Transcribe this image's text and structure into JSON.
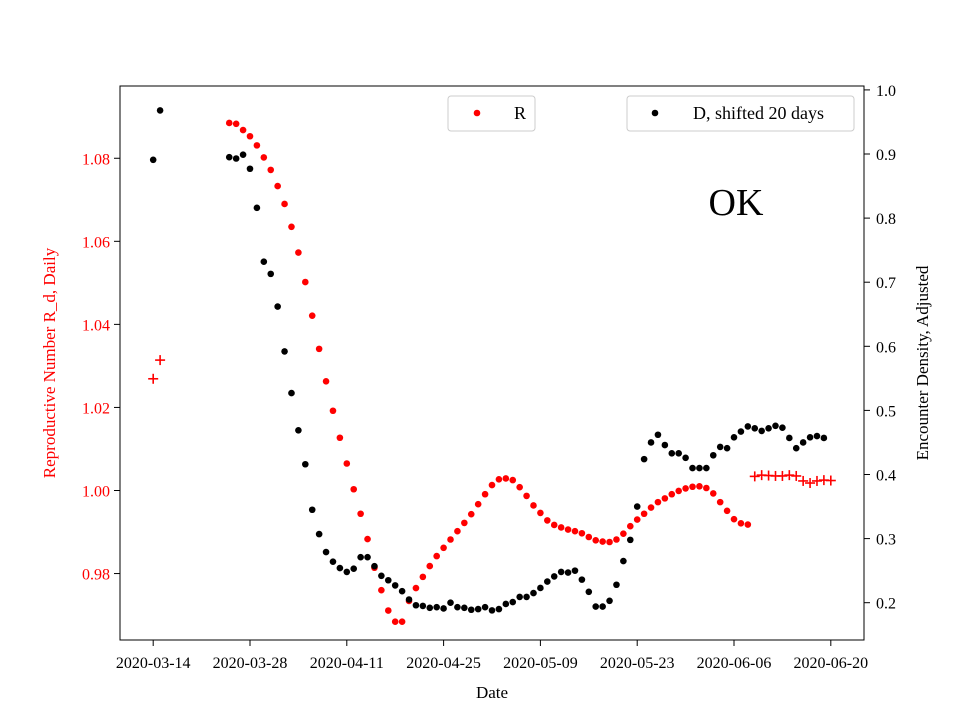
{
  "chart_data": {
    "type": "scatter",
    "annotation": "OK",
    "xlabel": "Date",
    "ylabel_left": "Reproductive Number R_d, Daily",
    "ylabel_right": "Encounter Density, Adjusted",
    "x_ticks": [
      {
        "day": 0,
        "label": "2020-03-14"
      },
      {
        "day": 14,
        "label": "2020-03-28"
      },
      {
        "day": 28,
        "label": "2020-04-11"
      },
      {
        "day": 42,
        "label": "2020-04-25"
      },
      {
        "day": 56,
        "label": "2020-05-09"
      },
      {
        "day": 70,
        "label": "2020-05-23"
      },
      {
        "day": 84,
        "label": "2020-06-06"
      },
      {
        "day": 98,
        "label": "2020-06-20"
      }
    ],
    "x_day_zero": "2020-03-14",
    "x_range": [
      -4.8,
      102.8
    ],
    "left_ylim": [
      0.964,
      1.0974
    ],
    "left_ticks": [
      {
        "v": 0.98,
        "label": "0.98"
      },
      {
        "v": 1.0,
        "label": "1.00"
      },
      {
        "v": 1.02,
        "label": "1.02"
      },
      {
        "v": 1.04,
        "label": "1.04"
      },
      {
        "v": 1.06,
        "label": "1.06"
      },
      {
        "v": 1.08,
        "label": "1.08"
      }
    ],
    "right_ylim": [
      0.1418,
      1.0061
    ],
    "right_ticks": [
      {
        "v": 0.2,
        "label": "0.2"
      },
      {
        "v": 0.3,
        "label": "0.3"
      },
      {
        "v": 0.4,
        "label": "0.4"
      },
      {
        "v": 0.5,
        "label": "0.5"
      },
      {
        "v": 0.6,
        "label": "0.6"
      },
      {
        "v": 0.7,
        "label": "0.7"
      },
      {
        "v": 0.8,
        "label": "0.8"
      },
      {
        "v": 0.9,
        "label": "0.9"
      },
      {
        "v": 1.0,
        "label": "1.0"
      }
    ],
    "legend": {
      "r_label": "R",
      "d_label": "D, shifted 20 days"
    },
    "series": [
      {
        "name": "R",
        "axis": "left",
        "color": "#ff0000",
        "marker": "dot",
        "points": [
          [
            11,
            1.0885
          ],
          [
            12,
            1.0883
          ],
          [
            13,
            1.0868
          ],
          [
            14,
            1.0853
          ],
          [
            15,
            1.0831
          ],
          [
            16,
            1.0802
          ],
          [
            17,
            1.0772
          ],
          [
            18,
            1.0733
          ],
          [
            19,
            1.069
          ],
          [
            20,
            1.0635
          ],
          [
            21,
            1.0573
          ],
          [
            22,
            1.0502
          ],
          [
            23,
            1.0421
          ],
          [
            24,
            1.0341
          ],
          [
            25,
            1.0263
          ],
          [
            26,
            1.0192
          ],
          [
            27,
            1.0127
          ],
          [
            28,
            1.0065
          ],
          [
            29,
            1.0003
          ],
          [
            30,
            0.9944
          ],
          [
            31,
            0.9883
          ],
          [
            32,
            0.9814
          ],
          [
            33,
            0.976
          ],
          [
            34,
            0.9711
          ],
          [
            35,
            0.9684
          ],
          [
            36,
            0.9684
          ],
          [
            37,
            0.9734
          ],
          [
            38,
            0.9765
          ],
          [
            39,
            0.9792
          ],
          [
            40,
            0.9818
          ],
          [
            41,
            0.9842
          ],
          [
            42,
            0.9862
          ],
          [
            43,
            0.9882
          ],
          [
            44,
            0.9902
          ],
          [
            45,
            0.9922
          ],
          [
            46,
            0.9943
          ],
          [
            47,
            0.9967
          ],
          [
            48,
            0.9991
          ],
          [
            49,
            1.0013
          ],
          [
            50,
            1.0027
          ],
          [
            51,
            1.0029
          ],
          [
            52,
            1.0025
          ],
          [
            53,
            1.0008
          ],
          [
            54,
            0.9987
          ],
          [
            55,
            0.9964
          ],
          [
            56,
            0.9946
          ],
          [
            57,
            0.9928
          ],
          [
            58,
            0.9917
          ],
          [
            59,
            0.9911
          ],
          [
            60,
            0.9906
          ],
          [
            61,
            0.9902
          ],
          [
            62,
            0.9897
          ],
          [
            63,
            0.9888
          ],
          [
            64,
            0.988
          ],
          [
            65,
            0.9877
          ],
          [
            66,
            0.9876
          ],
          [
            67,
            0.9882
          ],
          [
            68,
            0.9896
          ],
          [
            69,
            0.9914
          ],
          [
            70,
            0.993
          ],
          [
            71,
            0.9944
          ],
          [
            72,
            0.9959
          ],
          [
            73,
            0.9972
          ],
          [
            74,
            0.9981
          ],
          [
            75,
            0.9991
          ],
          [
            76,
            0.9999
          ],
          [
            77,
            1.0005
          ],
          [
            78,
            1.0009
          ],
          [
            79,
            1.001
          ],
          [
            80,
            1.0006
          ],
          [
            81,
            0.9993
          ],
          [
            82,
            0.9972
          ],
          [
            83,
            0.9951
          ],
          [
            84,
            0.9931
          ],
          [
            85,
            0.9921
          ],
          [
            86,
            0.9918
          ]
        ]
      },
      {
        "name": "R (plus markers)",
        "axis": "left",
        "color": "#ff0000",
        "marker": "plus",
        "points": [
          [
            0,
            1.0269
          ],
          [
            1,
            1.0314
          ],
          [
            87,
            1.0034
          ],
          [
            88,
            1.0037
          ],
          [
            89,
            1.0036
          ],
          [
            90,
            1.0035
          ],
          [
            91,
            1.0035
          ],
          [
            92,
            1.0037
          ],
          [
            93,
            1.0035
          ],
          [
            94,
            1.0023
          ],
          [
            95,
            1.0018
          ],
          [
            96,
            1.0023
          ],
          [
            97,
            1.0025
          ],
          [
            98,
            1.0024
          ]
        ]
      },
      {
        "name": "D, shifted 20 days",
        "axis": "right",
        "color": "#000000",
        "marker": "dot",
        "points": [
          [
            0,
            0.891
          ],
          [
            1,
            0.968
          ],
          [
            11,
            0.895
          ],
          [
            12,
            0.893
          ],
          [
            13,
            0.899
          ],
          [
            14,
            0.877
          ],
          [
            15,
            0.816
          ],
          [
            16,
            0.732
          ],
          [
            17,
            0.713
          ],
          [
            18,
            0.662
          ],
          [
            19,
            0.592
          ],
          [
            20,
            0.527
          ],
          [
            21,
            0.469
          ],
          [
            22,
            0.416
          ],
          [
            23,
            0.345
          ],
          [
            24,
            0.307
          ],
          [
            25,
            0.279
          ],
          [
            26,
            0.264
          ],
          [
            27,
            0.254
          ],
          [
            28,
            0.248
          ],
          [
            29,
            0.253
          ],
          [
            30,
            0.271
          ],
          [
            31,
            0.271
          ],
          [
            32,
            0.257
          ],
          [
            33,
            0.242
          ],
          [
            34,
            0.235
          ],
          [
            35,
            0.227
          ],
          [
            36,
            0.218
          ],
          [
            37,
            0.205
          ],
          [
            38,
            0.196
          ],
          [
            39,
            0.195
          ],
          [
            40,
            0.192
          ],
          [
            41,
            0.193
          ],
          [
            42,
            0.191
          ],
          [
            43,
            0.2
          ],
          [
            44,
            0.193
          ],
          [
            45,
            0.192
          ],
          [
            46,
            0.189
          ],
          [
            47,
            0.19
          ],
          [
            48,
            0.193
          ],
          [
            49,
            0.188
          ],
          [
            50,
            0.19
          ],
          [
            51,
            0.198
          ],
          [
            52,
            0.201
          ],
          [
            53,
            0.209
          ],
          [
            54,
            0.209
          ],
          [
            55,
            0.215
          ],
          [
            56,
            0.223
          ],
          [
            57,
            0.233
          ],
          [
            58,
            0.241
          ],
          [
            59,
            0.248
          ],
          [
            60,
            0.247
          ],
          [
            61,
            0.25
          ],
          [
            62,
            0.236
          ],
          [
            63,
            0.217
          ],
          [
            64,
            0.194
          ],
          [
            65,
            0.194
          ],
          [
            66,
            0.203
          ],
          [
            67,
            0.228
          ],
          [
            68,
            0.265
          ],
          [
            69,
            0.298
          ],
          [
            70,
            0.35
          ],
          [
            71,
            0.424
          ],
          [
            72,
            0.45
          ],
          [
            73,
            0.462
          ],
          [
            74,
            0.446
          ],
          [
            75,
            0.433
          ],
          [
            76,
            0.433
          ],
          [
            77,
            0.426
          ],
          [
            78,
            0.41
          ],
          [
            79,
            0.41
          ],
          [
            80,
            0.41
          ],
          [
            81,
            0.43
          ],
          [
            82,
            0.443
          ],
          [
            83,
            0.441
          ],
          [
            84,
            0.458
          ],
          [
            85,
            0.467
          ],
          [
            86,
            0.475
          ],
          [
            87,
            0.472
          ],
          [
            88,
            0.468
          ],
          [
            89,
            0.472
          ],
          [
            90,
            0.476
          ],
          [
            91,
            0.473
          ],
          [
            92,
            0.457
          ],
          [
            93,
            0.441
          ],
          [
            94,
            0.45
          ],
          [
            95,
            0.458
          ],
          [
            96,
            0.46
          ],
          [
            97,
            0.457
          ]
        ]
      }
    ]
  }
}
